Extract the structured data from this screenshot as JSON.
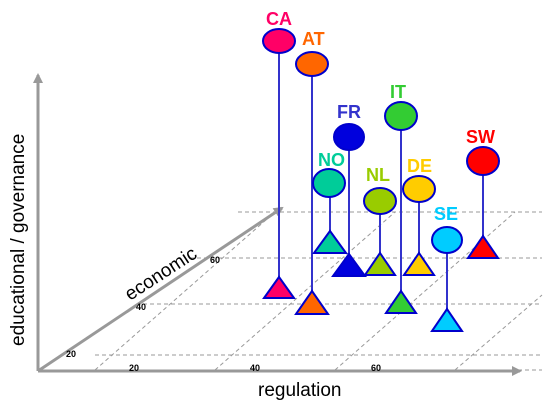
{
  "axes": {
    "x_label": "regulation",
    "y_label": "educational / governance",
    "z_label": "economic",
    "x_ticks": [
      "20",
      "40",
      "60"
    ],
    "z_ticks": [
      "20",
      "40",
      "60"
    ]
  },
  "countries": [
    {
      "code": "CA",
      "color": "#ff0066"
    },
    {
      "code": "AT",
      "color": "#ff6600"
    },
    {
      "code": "FR",
      "color": "#0000dd"
    },
    {
      "code": "IT",
      "color": "#33cc33"
    },
    {
      "code": "NO",
      "color": "#00cc99"
    },
    {
      "code": "NL",
      "color": "#99cc00"
    },
    {
      "code": "DE",
      "color": "#ffcc00"
    },
    {
      "code": "SE",
      "color": "#00ccff"
    },
    {
      "code": "SW",
      "color": "#ff0000"
    }
  ],
  "colors": {
    "axis": "#999999",
    "stem": "#3333cc",
    "grid": "#999999"
  }
}
